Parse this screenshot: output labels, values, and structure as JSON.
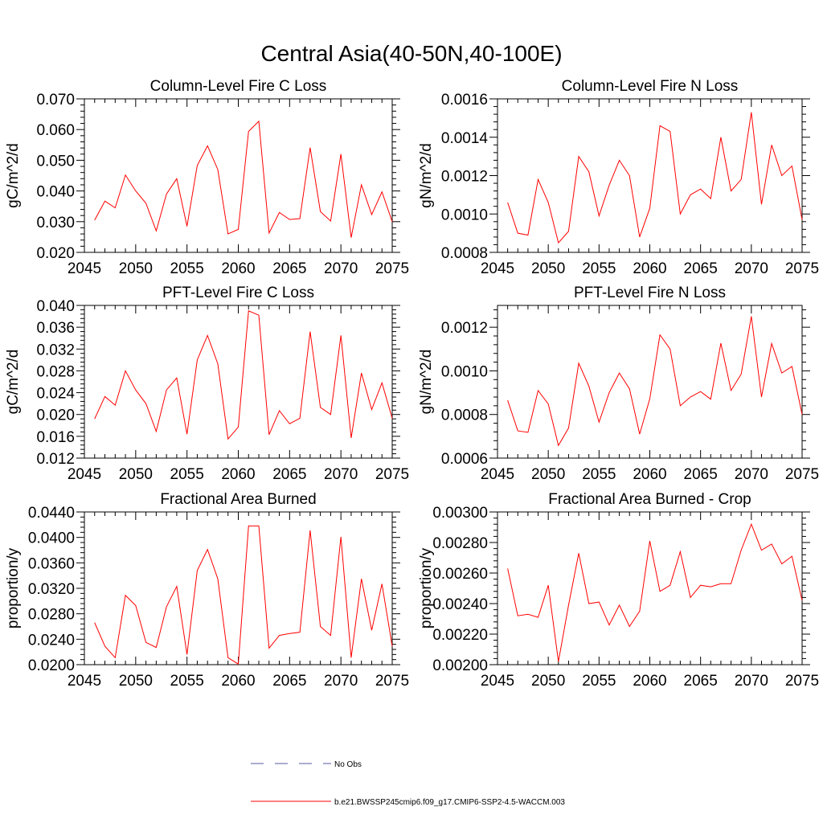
{
  "figure": {
    "title": "Central Asia(40-50N,40-100E)"
  },
  "legend": {
    "placement": "bottom-center",
    "entries": [
      {
        "label": "No Obs",
        "color": "#5a5aa0",
        "style": "dashed"
      },
      {
        "label": "b.e21.BWSSP245cmip6.f09_g17.CMIP6-SSP2-4.5-WACCM.003",
        "color": "#ff0000",
        "style": "solid"
      }
    ]
  },
  "chart_data": [
    {
      "type": "line",
      "title": "Column-Level Fire C Loss",
      "ylabel": "gC/m^2/d",
      "xlim": [
        2045,
        2075
      ],
      "ylim": [
        0.02,
        0.07
      ],
      "xticks": [
        2045,
        2050,
        2055,
        2060,
        2065,
        2070,
        2075
      ],
      "yticks": [
        "0.020",
        "0.030",
        "0.040",
        "0.050",
        "0.060",
        "0.070"
      ],
      "x": [
        2046,
        2047,
        2048,
        2049,
        2050,
        2051,
        2052,
        2053,
        2054,
        2055,
        2056,
        2057,
        2058,
        2059,
        2060,
        2061,
        2062,
        2063,
        2064,
        2065,
        2066,
        2067,
        2068,
        2069,
        2070,
        2071,
        2072,
        2073,
        2074,
        2075
      ],
      "series": [
        {
          "color": "#ff0000",
          "values": [
            0.0305,
            0.0367,
            0.0345,
            0.0452,
            0.04,
            0.036,
            0.027,
            0.039,
            0.044,
            0.0285,
            0.0483,
            0.0547,
            0.047,
            0.026,
            0.0275,
            0.0594,
            0.0627,
            0.0263,
            0.033,
            0.0307,
            0.031,
            0.0541,
            0.0333,
            0.0302,
            0.052,
            0.0248,
            0.042,
            0.0323,
            0.0397,
            0.03
          ]
        }
      ]
    },
    {
      "type": "line",
      "title": "Column-Level Fire N Loss",
      "ylabel": "gN/m^2/d",
      "xlim": [
        2045,
        2075
      ],
      "ylim": [
        0.0008,
        0.0016
      ],
      "xticks": [
        2045,
        2050,
        2055,
        2060,
        2065,
        2070,
        2075
      ],
      "yticks": [
        "0.0008",
        "0.0010",
        "0.0012",
        "0.0014",
        "0.0016"
      ],
      "x": [
        2046,
        2047,
        2048,
        2049,
        2050,
        2051,
        2052,
        2053,
        2054,
        2055,
        2056,
        2057,
        2058,
        2059,
        2060,
        2061,
        2062,
        2063,
        2064,
        2065,
        2066,
        2067,
        2068,
        2069,
        2070,
        2071,
        2072,
        2073,
        2074,
        2075
      ],
      "series": [
        {
          "color": "#ff0000",
          "values": [
            0.00106,
            0.0009,
            0.00089,
            0.00118,
            0.00106,
            0.00085,
            0.00091,
            0.0013,
            0.00122,
            0.00099,
            0.00115,
            0.00128,
            0.0012,
            0.00088,
            0.00103,
            0.00146,
            0.00143,
            0.001,
            0.0011,
            0.00113,
            0.00108,
            0.0014,
            0.00112,
            0.00118,
            0.00153,
            0.00105,
            0.00136,
            0.0012,
            0.00125,
            0.00097
          ]
        }
      ]
    },
    {
      "type": "line",
      "title": "PFT-Level Fire C Loss",
      "ylabel": "gC/m^2/d",
      "xlim": [
        2045,
        2075
      ],
      "ylim": [
        0.012,
        0.04
      ],
      "xticks": [
        2045,
        2050,
        2055,
        2060,
        2065,
        2070,
        2075
      ],
      "yticks": [
        "0.012",
        "0.016",
        "0.020",
        "0.024",
        "0.028",
        "0.032",
        "0.036",
        "0.040"
      ],
      "x": [
        2046,
        2047,
        2048,
        2049,
        2050,
        2051,
        2052,
        2053,
        2054,
        2055,
        2056,
        2057,
        2058,
        2059,
        2060,
        2061,
        2062,
        2063,
        2064,
        2065,
        2066,
        2067,
        2068,
        2069,
        2070,
        2071,
        2072,
        2073,
        2074,
        2075
      ],
      "series": [
        {
          "color": "#ff0000",
          "values": [
            0.0192,
            0.0233,
            0.0217,
            0.028,
            0.0245,
            0.022,
            0.0169,
            0.0245,
            0.0267,
            0.0164,
            0.03,
            0.0345,
            0.0293,
            0.0155,
            0.0177,
            0.039,
            0.0382,
            0.0163,
            0.0207,
            0.0183,
            0.0193,
            0.0352,
            0.0213,
            0.02,
            0.0345,
            0.0157,
            0.0276,
            0.0209,
            0.0258,
            0.0193
          ]
        }
      ]
    },
    {
      "type": "line",
      "title": "PFT-Level Fire N Loss",
      "ylabel": "gN/m^2/d",
      "xlim": [
        2045,
        2075
      ],
      "ylim": [
        0.0006,
        0.0013
      ],
      "xticks": [
        2045,
        2050,
        2055,
        2060,
        2065,
        2070,
        2075
      ],
      "yticks": [
        "0.0006",
        "0.0008",
        "0.0010",
        "0.0012"
      ],
      "x": [
        2046,
        2047,
        2048,
        2049,
        2050,
        2051,
        2052,
        2053,
        2054,
        2055,
        2056,
        2057,
        2058,
        2059,
        2060,
        2061,
        2062,
        2063,
        2064,
        2065,
        2066,
        2067,
        2068,
        2069,
        2070,
        2071,
        2072,
        2073,
        2074,
        2075
      ],
      "series": [
        {
          "color": "#ff0000",
          "values": [
            0.000865,
            0.000725,
            0.000718,
            0.00091,
            0.000848,
            0.000658,
            0.000738,
            0.001035,
            0.00093,
            0.000765,
            0.0009,
            0.00099,
            0.000918,
            0.00071,
            0.000872,
            0.001165,
            0.0011,
            0.00084,
            0.00088,
            0.000905,
            0.00087,
            0.001127,
            0.00091,
            0.000985,
            0.00125,
            0.00088,
            0.001125,
            0.00099,
            0.00102,
            0.0008
          ]
        }
      ]
    },
    {
      "type": "line",
      "title": "Fractional Area Burned",
      "ylabel": "proportion/y",
      "xlim": [
        2045,
        2075
      ],
      "ylim": [
        0.02,
        0.044
      ],
      "xticks": [
        2045,
        2050,
        2055,
        2060,
        2065,
        2070,
        2075
      ],
      "yticks": [
        "0.0200",
        "0.0240",
        "0.0280",
        "0.0320",
        "0.0360",
        "0.0400",
        "0.0440"
      ],
      "x": [
        2046,
        2047,
        2048,
        2049,
        2050,
        2051,
        2052,
        2053,
        2054,
        2055,
        2056,
        2057,
        2058,
        2059,
        2060,
        2061,
        2062,
        2063,
        2064,
        2065,
        2066,
        2067,
        2068,
        2069,
        2070,
        2071,
        2072,
        2073,
        2074,
        2075
      ],
      "series": [
        {
          "color": "#ff0000",
          "values": [
            0.0266,
            0.0229,
            0.0211,
            0.0309,
            0.0293,
            0.0235,
            0.0227,
            0.0291,
            0.0323,
            0.0216,
            0.0348,
            0.0381,
            0.0335,
            0.0211,
            0.0201,
            0.0418,
            0.0418,
            0.0226,
            0.0246,
            0.0249,
            0.0251,
            0.0411,
            0.026,
            0.0246,
            0.0401,
            0.0211,
            0.0335,
            0.0254,
            0.0327,
            0.0229
          ]
        }
      ]
    },
    {
      "type": "line",
      "title": "Fractional Area Burned - Crop",
      "ylabel": "proportion/y",
      "xlim": [
        2045,
        2075
      ],
      "ylim": [
        0.002,
        0.003
      ],
      "xticks": [
        2045,
        2050,
        2055,
        2060,
        2065,
        2070,
        2075
      ],
      "yticks": [
        "0.00200",
        "0.00220",
        "0.00240",
        "0.00260",
        "0.00280",
        "0.00300"
      ],
      "x": [
        2046,
        2047,
        2048,
        2049,
        2050,
        2051,
        2052,
        2053,
        2054,
        2055,
        2056,
        2057,
        2058,
        2059,
        2060,
        2061,
        2062,
        2063,
        2064,
        2065,
        2066,
        2067,
        2068,
        2069,
        2070,
        2071,
        2072,
        2073,
        2074,
        2075
      ],
      "series": [
        {
          "color": "#ff0000",
          "values": [
            0.00263,
            0.00232,
            0.00233,
            0.00231,
            0.00252,
            0.00202,
            0.00239,
            0.00273,
            0.0024,
            0.00241,
            0.00226,
            0.00239,
            0.00225,
            0.00235,
            0.00281,
            0.00248,
            0.00252,
            0.00274,
            0.00244,
            0.00252,
            0.00251,
            0.00253,
            0.00253,
            0.00275,
            0.00292,
            0.00275,
            0.00279,
            0.00266,
            0.00271,
            0.00242
          ]
        }
      ]
    }
  ]
}
